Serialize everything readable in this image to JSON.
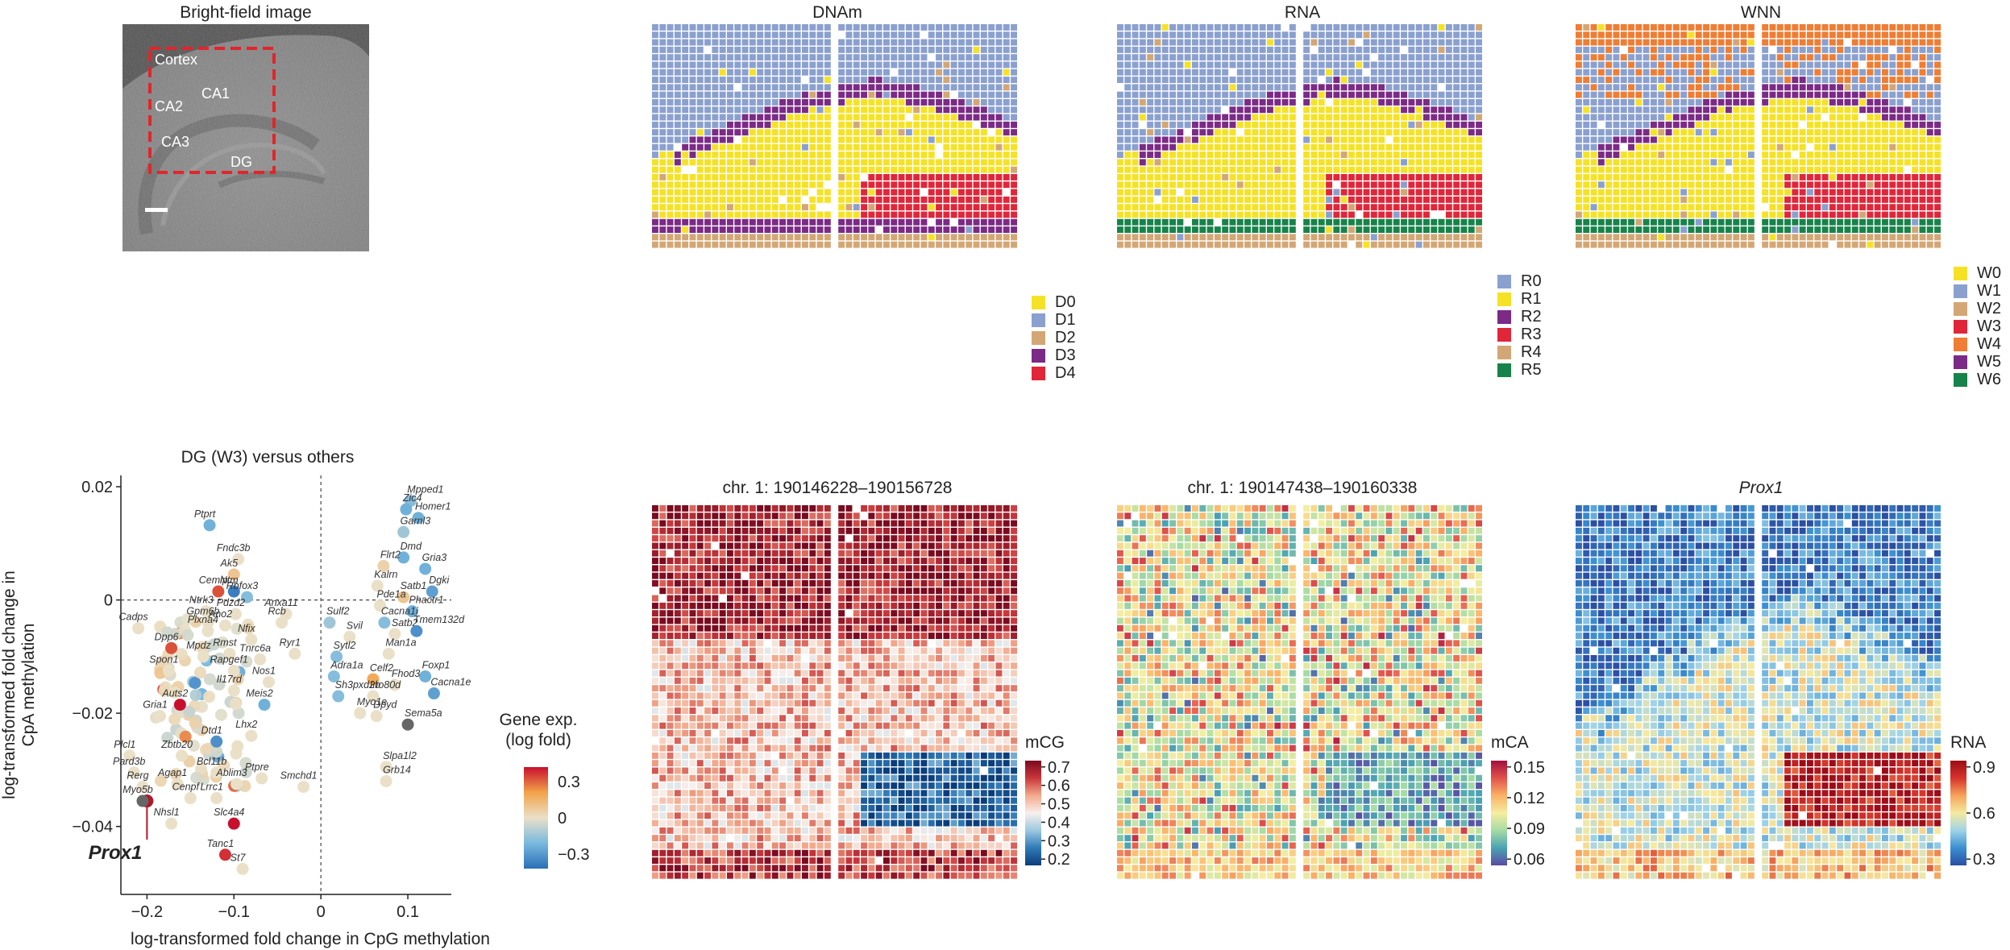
{
  "panel_a": {
    "title": "Bright-field image",
    "region_labels": [
      "Cortex",
      "CA1",
      "CA2",
      "CA3",
      "DG"
    ]
  },
  "cluster_maps": [
    {
      "title": "DNAm",
      "legend": [
        {
          "label": "D0",
          "color": "#f5e227"
        },
        {
          "label": "D1",
          "color": "#8aa0cf"
        },
        {
          "label": "D2",
          "color": "#d3a775"
        },
        {
          "label": "D3",
          "color": "#7b2a86"
        },
        {
          "label": "D4",
          "color": "#e1263a"
        }
      ]
    },
    {
      "title": "RNA",
      "legend": [
        {
          "label": "R0",
          "color": "#8aa0cf"
        },
        {
          "label": "R1",
          "color": "#f5e227"
        },
        {
          "label": "R2",
          "color": "#7b2a86"
        },
        {
          "label": "R3",
          "color": "#e1263a"
        },
        {
          "label": "R4",
          "color": "#d3a775"
        },
        {
          "label": "R5",
          "color": "#17834a"
        }
      ]
    },
    {
      "title": "WNN",
      "legend": [
        {
          "label": "W0",
          "color": "#f5e227"
        },
        {
          "label": "W1",
          "color": "#8aa0cf"
        },
        {
          "label": "W2",
          "color": "#d3a775"
        },
        {
          "label": "W3",
          "color": "#e1263a"
        },
        {
          "label": "W4",
          "color": "#ef7d33"
        },
        {
          "label": "W5",
          "color": "#7b2a86"
        },
        {
          "label": "W6",
          "color": "#17834a"
        }
      ]
    }
  ],
  "value_maps": [
    {
      "title": "chr. 1: 190146228–190156728",
      "italic": false,
      "scale_title": "mCG",
      "ticks": [
        "0.7",
        "0.6",
        "0.5",
        "0.4",
        "0.3",
        "0.2"
      ]
    },
    {
      "title": "chr. 1: 190147438–190160338",
      "italic": false,
      "scale_title": "mCA",
      "ticks": [
        "0.15",
        "0.12",
        "0.09",
        "0.06"
      ]
    },
    {
      "title": "Prox1",
      "italic": true,
      "scale_title": "RNA",
      "ticks": [
        "0.9",
        "0.6",
        "0.3"
      ]
    }
  ],
  "chart_data": {
    "type": "scatter",
    "title": "DG (W3) versus others",
    "xlabel": "log-transformed fold change in CpG methylation",
    "ylabel": "log-transformed fold change in CpA methylation",
    "xlim": [
      -0.23,
      0.15
    ],
    "ylim": [
      -0.052,
      0.022
    ],
    "x_ticks": [
      "−0.2",
      "−0.1",
      "0",
      "0.1"
    ],
    "y_ticks": [
      "0.02",
      "0",
      "−0.02",
      "−0.04"
    ],
    "colorbar": {
      "title": "Gene exp.",
      "subtitle": "(log fold)",
      "ticks": [
        "0.3",
        "0",
        "−0.3"
      ]
    },
    "highlight_gene": "Prox1",
    "labeled_points": [
      {
        "gene": "Prox1",
        "x": -0.2,
        "y": -0.0355,
        "expr": 0.4
      },
      {
        "gene": "Mpped1",
        "x": 0.103,
        "y": 0.0175,
        "expr": -0.2
      },
      {
        "gene": "Zic4",
        "x": 0.098,
        "y": 0.016,
        "expr": -0.25
      },
      {
        "gene": "Homer1",
        "x": 0.112,
        "y": 0.0145,
        "expr": -0.25
      },
      {
        "gene": "Garnl3",
        "x": 0.095,
        "y": 0.012,
        "expr": -0.15
      },
      {
        "gene": "Dmd",
        "x": 0.095,
        "y": 0.0075,
        "expr": -0.25
      },
      {
        "gene": "Flrt2",
        "x": 0.072,
        "y": 0.006,
        "expr": 0.05
      },
      {
        "gene": "Gria3",
        "x": 0.12,
        "y": 0.0055,
        "expr": -0.25
      },
      {
        "gene": "Kalrn",
        "x": 0.065,
        "y": 0.0025,
        "expr": 0.0
      },
      {
        "gene": "Dgki",
        "x": 0.128,
        "y": 0.0015,
        "expr": -0.3
      },
      {
        "gene": "Satb1",
        "x": 0.095,
        "y": 0.0005,
        "expr": 0.1
      },
      {
        "gene": "Pde1a",
        "x": 0.068,
        "y": -0.001,
        "expr": 0.0
      },
      {
        "gene": "Phactr1",
        "x": 0.105,
        "y": -0.002,
        "expr": -0.25
      },
      {
        "gene": "Cacna1i",
        "x": 0.073,
        "y": -0.004,
        "expr": -0.2
      },
      {
        "gene": "Satb2",
        "x": 0.085,
        "y": -0.006,
        "expr": 0.0
      },
      {
        "gene": "Tmem132d",
        "x": 0.11,
        "y": -0.0055,
        "expr": -0.35
      },
      {
        "gene": "Svil",
        "x": 0.033,
        "y": -0.0065,
        "expr": 0.0
      },
      {
        "gene": "Sulf2",
        "x": 0.01,
        "y": -0.004,
        "expr": -0.15
      },
      {
        "gene": "Man1a",
        "x": 0.078,
        "y": -0.0095,
        "expr": 0.0
      },
      {
        "gene": "Sytl2",
        "x": 0.018,
        "y": -0.01,
        "expr": -0.2
      },
      {
        "gene": "Foxp1",
        "x": 0.12,
        "y": -0.0135,
        "expr": -0.25
      },
      {
        "gene": "Celf2",
        "x": 0.06,
        "y": -0.014,
        "expr": 0.2
      },
      {
        "gene": "Fhod3",
        "x": 0.085,
        "y": -0.015,
        "expr": 0.0
      },
      {
        "gene": "Cacna1e",
        "x": 0.13,
        "y": -0.0165,
        "expr": -0.3
      },
      {
        "gene": "Adra1a",
        "x": 0.015,
        "y": -0.0135,
        "expr": -0.2
      },
      {
        "gene": "Ino80d",
        "x": 0.06,
        "y": -0.017,
        "expr": 0.0
      },
      {
        "gene": "Sh3pxd2b",
        "x": 0.02,
        "y": -0.017,
        "expr": -0.2
      },
      {
        "gene": "Dpyd",
        "x": 0.064,
        "y": -0.0205,
        "expr": 0.0
      },
      {
        "gene": "Myo1e",
        "x": 0.045,
        "y": -0.02,
        "expr": 0.0
      },
      {
        "gene": "Sema5a",
        "x": 0.1,
        "y": -0.022,
        "expr": 0.5
      },
      {
        "gene": "Slpa1l2",
        "x": 0.075,
        "y": -0.0295,
        "expr": 0.0
      },
      {
        "gene": "Grb14",
        "x": 0.075,
        "y": -0.032,
        "expr": 0.0
      },
      {
        "gene": "Ptprt",
        "x": -0.128,
        "y": 0.0132,
        "expr": -0.25
      },
      {
        "gene": "Fndc3b",
        "x": -0.095,
        "y": 0.0072,
        "expr": 0.0
      },
      {
        "gene": "Ak5",
        "x": -0.1,
        "y": 0.0045,
        "expr": 0.1
      },
      {
        "gene": "Cemip",
        "x": -0.118,
        "y": 0.0015,
        "expr": 0.35
      },
      {
        "gene": "Ntm",
        "x": -0.1,
        "y": 0.0015,
        "expr": -0.4
      },
      {
        "gene": "Rbfox3",
        "x": -0.085,
        "y": 0.0005,
        "expr": -0.2
      },
      {
        "gene": "Ntrk3",
        "x": -0.132,
        "y": -0.002,
        "expr": 0.0
      },
      {
        "gene": "Pdzd2",
        "x": -0.098,
        "y": -0.0025,
        "expr": 0.0
      },
      {
        "gene": "Anxa11",
        "x": -0.04,
        "y": -0.0025,
        "expr": 0.0
      },
      {
        "gene": "Gpm6b",
        "x": -0.13,
        "y": -0.004,
        "expr": 0.0
      },
      {
        "gene": "Ano2",
        "x": -0.11,
        "y": -0.0045,
        "expr": 0.0
      },
      {
        "gene": "Rcb",
        "x": -0.045,
        "y": -0.004,
        "expr": 0.0
      },
      {
        "gene": "Plxna4",
        "x": -0.13,
        "y": -0.0055,
        "expr": 0.0
      },
      {
        "gene": "Cadps",
        "x": -0.21,
        "y": -0.005,
        "expr": 0.0
      },
      {
        "gene": "Nfix",
        "x": -0.08,
        "y": -0.007,
        "expr": 0.0
      },
      {
        "gene": "Dpp6",
        "x": -0.172,
        "y": -0.0085,
        "expr": 0.35
      },
      {
        "gene": "Mpdz",
        "x": -0.135,
        "y": -0.01,
        "expr": 0.0
      },
      {
        "gene": "Rmst",
        "x": -0.105,
        "y": -0.0095,
        "expr": 0.0
      },
      {
        "gene": "Tnrc6a",
        "x": -0.07,
        "y": -0.0105,
        "expr": 0.0
      },
      {
        "gene": "Ryr1",
        "x": -0.03,
        "y": -0.0095,
        "expr": 0.0
      },
      {
        "gene": "Rapgef1",
        "x": -0.1,
        "y": -0.0125,
        "expr": 0.0
      },
      {
        "gene": "Spon1",
        "x": -0.175,
        "y": -0.0125,
        "expr": 0.0
      },
      {
        "gene": "Nos1",
        "x": -0.06,
        "y": -0.0145,
        "expr": 0.0
      },
      {
        "gene": "Il17rd",
        "x": -0.1,
        "y": -0.016,
        "expr": 0.0
      },
      {
        "gene": "Auts2",
        "x": -0.162,
        "y": -0.0185,
        "expr": 0.6
      },
      {
        "gene": "Meis2",
        "x": -0.065,
        "y": -0.0185,
        "expr": -0.25
      },
      {
        "gene": "Gria1",
        "x": -0.185,
        "y": -0.0205,
        "expr": 0.0
      },
      {
        "gene": "Lhx2",
        "x": -0.08,
        "y": -0.024,
        "expr": 0.0
      },
      {
        "gene": "Dtd1",
        "x": -0.12,
        "y": -0.025,
        "expr": -0.35
      },
      {
        "gene": "Plcl1",
        "x": -0.22,
        "y": -0.0275,
        "expr": 0.0
      },
      {
        "gene": "Zbtb20",
        "x": -0.16,
        "y": -0.0275,
        "expr": 0.0
      },
      {
        "gene": "Pard3b",
        "x": -0.215,
        "y": -0.0305,
        "expr": 0.0
      },
      {
        "gene": "Rerg",
        "x": -0.205,
        "y": -0.033,
        "expr": 0.0
      },
      {
        "gene": "Bcl11b",
        "x": -0.12,
        "y": -0.0305,
        "expr": 0.0
      },
      {
        "gene": "Ptpre",
        "x": -0.068,
        "y": -0.0315,
        "expr": 0.0
      },
      {
        "gene": "Agap1",
        "x": -0.165,
        "y": -0.0325,
        "expr": 0.0
      },
      {
        "gene": "Ablim3",
        "x": -0.097,
        "y": -0.0325,
        "expr": 0.0
      },
      {
        "gene": "Smchd1",
        "x": -0.02,
        "y": -0.033,
        "expr": 0.0
      },
      {
        "gene": "Myo5b",
        "x": -0.205,
        "y": -0.0355,
        "expr": 0.0
      },
      {
        "gene": "Cenpf",
        "x": -0.15,
        "y": -0.035,
        "expr": 0.0
      },
      {
        "gene": "Lrrc1",
        "x": -0.12,
        "y": -0.035,
        "expr": 0.0
      },
      {
        "gene": "Nhsl1",
        "x": -0.172,
        "y": -0.0395,
        "expr": 0.0
      },
      {
        "gene": "Slc4a4",
        "x": -0.1,
        "y": -0.0395,
        "expr": 0.6
      },
      {
        "gene": "Tanc1",
        "x": -0.11,
        "y": -0.045,
        "expr": 0.4
      },
      {
        "gene": "St7",
        "x": -0.09,
        "y": -0.0475,
        "expr": 0.0
      }
    ]
  }
}
